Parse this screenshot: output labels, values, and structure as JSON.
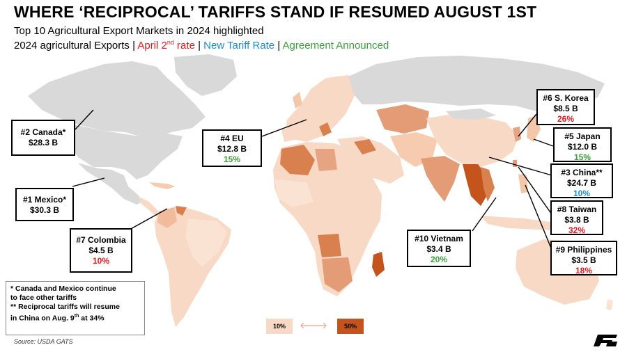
{
  "title": "WHERE ‘RECIPROCAL’ TARIFFS STAND IF RESUMED AUGUST 1ST",
  "subtitle": "Top 10 Agricultural Export Markets in 2024 highlighted",
  "legend": {
    "part1": "2024 agricultural Exports",
    "sep1": " | ",
    "part2_prefix": "April 2",
    "part2_sup": "nd",
    "part2_suffix": " rate",
    "sep2": " | ",
    "part3": "New Tariff Rate",
    "sep3": " | ",
    "part4": "Agreement Announced",
    "colors": {
      "april": "#e8171b",
      "new": "#1a8cd8",
      "agreement": "#3aa03a"
    }
  },
  "markets": [
    {
      "name": "#2 Canada*",
      "value": "$28.3 B",
      "rate": "",
      "status": ""
    },
    {
      "name": "#1 Mexico*",
      "value": "$30.3 B",
      "rate": "",
      "status": ""
    },
    {
      "name": "#7 Colombia",
      "value": "$4.5 B",
      "rate": "10%",
      "status": "april"
    },
    {
      "name": "#4 EU",
      "value": "$12.8 B",
      "rate": "15%",
      "status": "agreement"
    },
    {
      "name": "#6 S. Korea",
      "value": "$8.5 B",
      "rate": "26%",
      "status": "april"
    },
    {
      "name": "#5 Japan",
      "value": "$12.0 B",
      "rate": "15%",
      "status": "agreement"
    },
    {
      "name": "#3 China**",
      "value": "$24.7 B",
      "rate": "10%",
      "status": "new"
    },
    {
      "name": "#8 Taiwan",
      "value": "$3.8 B",
      "rate": "32%",
      "status": "april"
    },
    {
      "name": "#10 Vietnam",
      "value": "$3.4 B",
      "rate": "20%",
      "status": "agreement"
    },
    {
      "name": "#9 Philippines",
      "value": "$3.5 B",
      "rate": "18%",
      "status": "april"
    }
  ],
  "notes": {
    "line1": "* Canada and Mexico continue",
    "line2": "to face other tariffs",
    "line3": "** Reciprocal tariffs will resume",
    "line4_prefix": "in China on Aug. 9",
    "line4_sup": "th",
    "line4_suffix": " at 34%"
  },
  "scale": {
    "low_label": "10%",
    "high_label": "50%",
    "low_color": "#f8d9c6",
    "high_color": "#c4541c"
  },
  "colors": {
    "no_data": "#d9d9d9",
    "ocean": "#ffffff"
  },
  "source": "Source: USDA GATS"
}
